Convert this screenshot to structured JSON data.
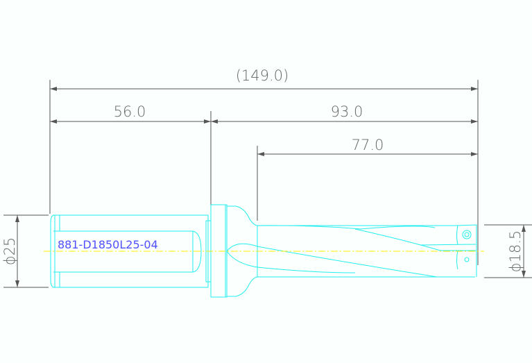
{
  "drawing": {
    "part_number": "881-D1850L25-04",
    "dimensions": {
      "overall_length": "(149.0)",
      "shank_length": "56.0",
      "body_length": "93.0",
      "flute_length": "77.0",
      "shank_diameter": "ϕ25",
      "drill_diameter": "ϕ18.5"
    },
    "colors": {
      "outline": "#22eeee",
      "centerline": "#ffee00",
      "dimension": "#555555",
      "label": "#5050ff"
    }
  }
}
